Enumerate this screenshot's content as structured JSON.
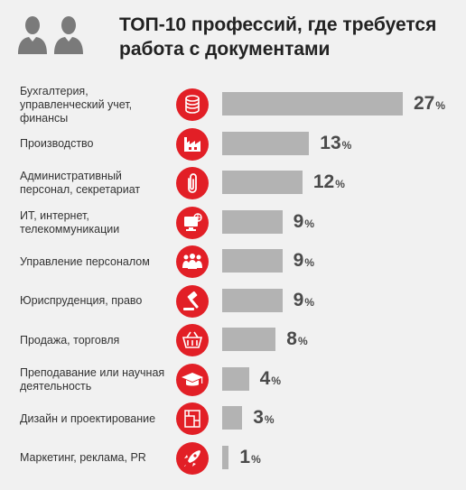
{
  "header": {
    "title": "ТОП-10 профессий, где требуется\nработа с документами",
    "icon": "people-icon"
  },
  "colors": {
    "accent": "#e21f26",
    "bar": "#b3b3b3",
    "background": "#f1f1f1"
  },
  "chart_data": {
    "type": "bar",
    "orientation": "horizontal",
    "title": "ТОП-10 профессий, где требуется работа с документами",
    "unit": "%",
    "categories": [
      "Бухгалтерия, управленческий учет, финансы",
      "Производство",
      "Административный персонал, секретариат",
      "ИТ, интернет, телекоммуникации",
      "Управление персоналом",
      "Юриспруденция, право",
      "Продажа, торговля",
      "Преподавание или научная деятельность",
      "Дизайн и проектирование",
      "Маркетинг, реклама, PR"
    ],
    "values": [
      27,
      13,
      12,
      9,
      9,
      9,
      8,
      4,
      3,
      1
    ],
    "icons": [
      "coins-icon",
      "factory-icon",
      "paperclip-icon",
      "computer-icon",
      "people-group-icon",
      "gavel-icon",
      "basket-icon",
      "graduation-cap-icon",
      "blueprint-icon",
      "rocket-icon"
    ],
    "xlim": [
      0,
      27
    ],
    "grid": false,
    "legend": "none"
  }
}
